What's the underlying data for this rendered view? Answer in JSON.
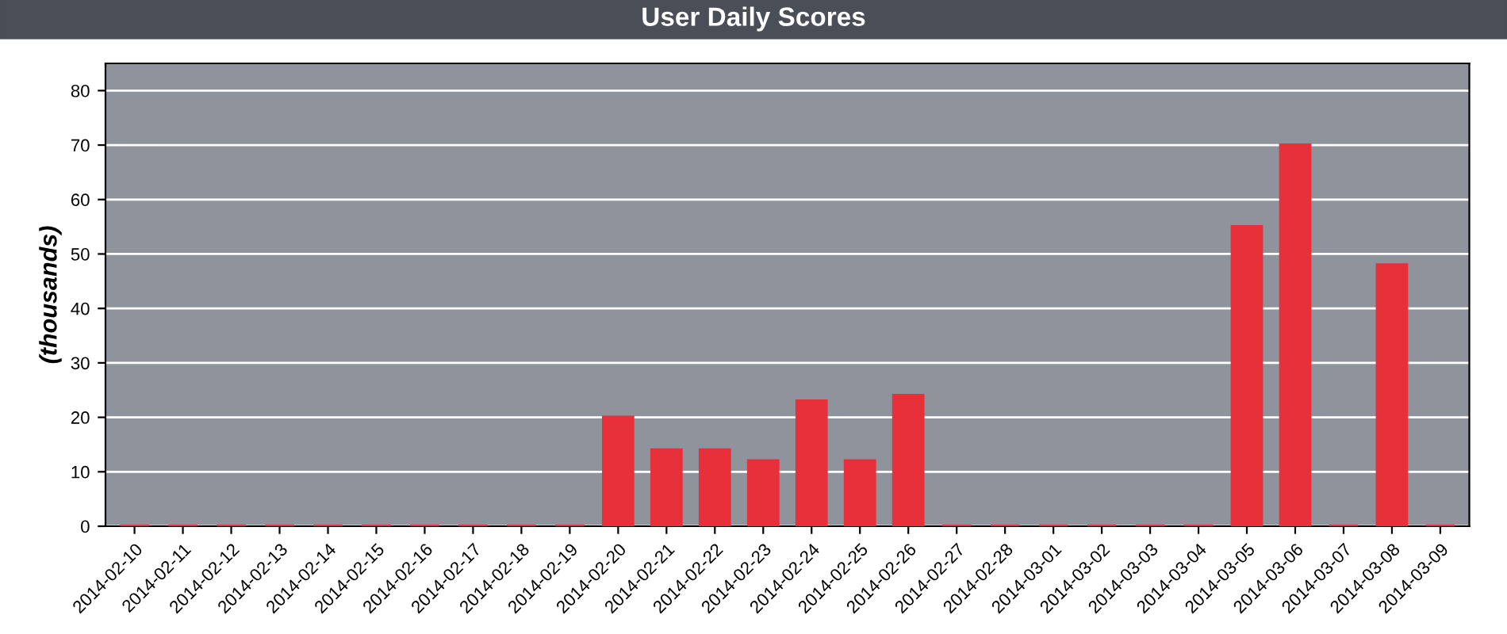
{
  "chart_data": {
    "type": "bar",
    "title": "User Daily Scores",
    "ylabel": "(thousands)",
    "categories": [
      "2014-02-10",
      "2014-02-11",
      "2014-02-12",
      "2014-02-13",
      "2014-02-14",
      "2014-02-15",
      "2014-02-16",
      "2014-02-17",
      "2014-02-18",
      "2014-02-19",
      "2014-02-20",
      "2014-02-21",
      "2014-02-22",
      "2014-02-23",
      "2014-02-24",
      "2014-02-25",
      "2014-02-26",
      "2014-02-27",
      "2014-02-28",
      "2014-03-01",
      "2014-03-02",
      "2014-03-03",
      "2014-03-04",
      "2014-03-05",
      "2014-03-06",
      "2014-03-07",
      "2014-03-08",
      "2014-03-09"
    ],
    "values": [
      0,
      0,
      0,
      0,
      0,
      0,
      0,
      0,
      0,
      0,
      20,
      14,
      14,
      12,
      23,
      12,
      24,
      0,
      0,
      0,
      0,
      0,
      0,
      55,
      70,
      0,
      48,
      0
    ],
    "color": "#e8303a",
    "ylim": [
      0,
      85
    ],
    "yticks": [
      0,
      10,
      20,
      30,
      40,
      50,
      60,
      70,
      80
    ],
    "grid": "y"
  }
}
